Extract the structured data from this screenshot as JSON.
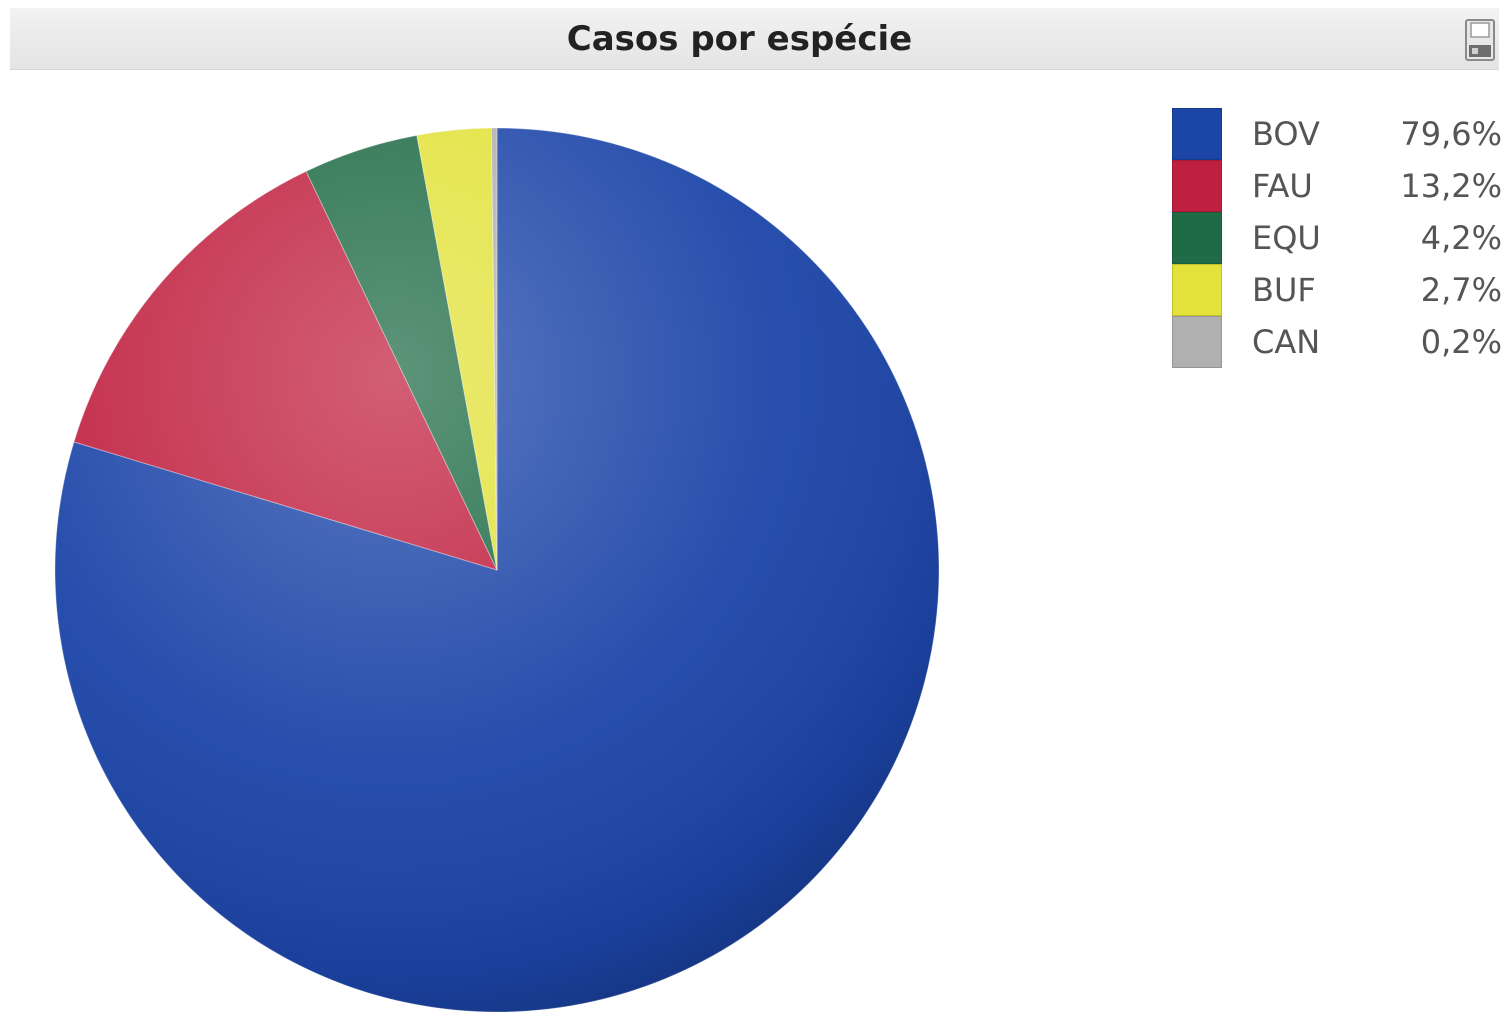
{
  "caption": {
    "title": "Casos por espécie",
    "icon": "save-icon"
  },
  "chart_data": {
    "type": "pie",
    "title": "Casos por espécie",
    "legend_position": "top-right",
    "slices": [
      {
        "label": "BOV",
        "value": 79.6,
        "display": "79,6%",
        "color": "#1c45a8"
      },
      {
        "label": "FAU",
        "value": 13.2,
        "display": "13,2%",
        "color": "#c0203f"
      },
      {
        "label": "EQU",
        "value": 4.2,
        "display": "4,2%",
        "color": "#1e6b45"
      },
      {
        "label": "BUF",
        "value": 2.7,
        "display": "2,7%",
        "color": "#e2e23a"
      },
      {
        "label": "CAN",
        "value": 0.2,
        "display": "0,2%",
        "color": "#b0b0b0"
      }
    ]
  }
}
